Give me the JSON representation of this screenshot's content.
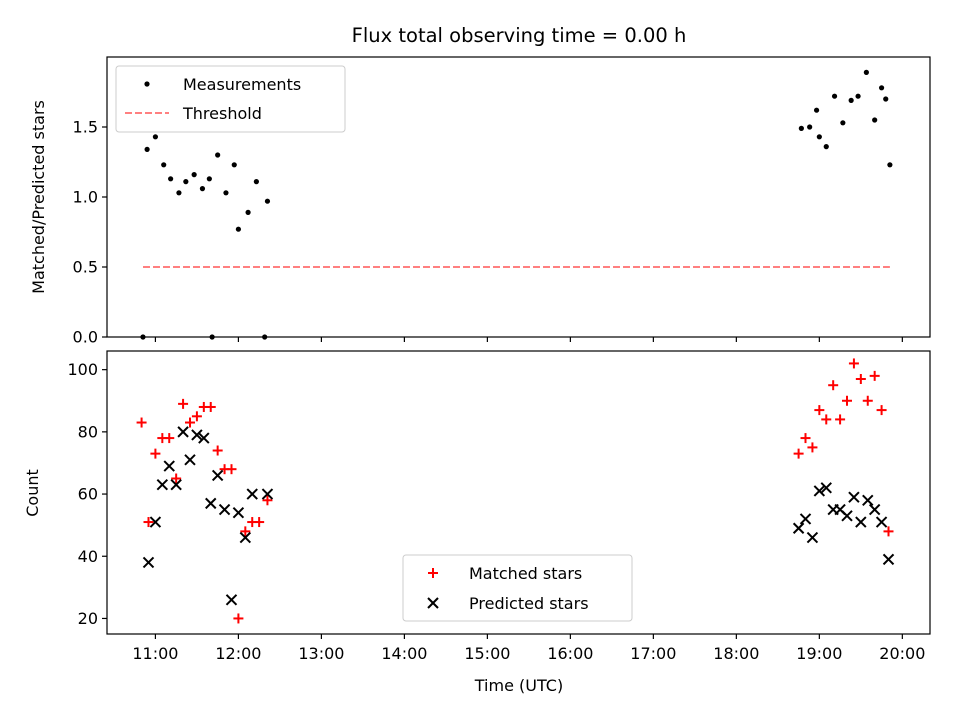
{
  "figure": {
    "title": "Flux total observing time = 0.00 h",
    "xlabel": "Time (UTC)"
  },
  "chart_data": [
    {
      "type": "scatter",
      "panel": "top",
      "ylabel": "Matched/Predicted stars",
      "xlim": [
        "10:25",
        "20:20"
      ],
      "ylim": [
        0,
        2.0
      ],
      "yticks": [
        0.0,
        0.5,
        1.0,
        1.5
      ],
      "ytick_labels": [
        "0.0",
        "0.5",
        "1.0",
        "1.5"
      ],
      "legend_position": "upper-left",
      "series": [
        {
          "name": "Measurements",
          "marker": "dot",
          "color": "#000000",
          "x": [
            "10:51",
            "10:54",
            "11:00",
            "11:06",
            "11:11",
            "11:17",
            "11:22",
            "11:28",
            "11:34",
            "11:39",
            "11:41",
            "11:45",
            "11:51",
            "11:57",
            "12:00",
            "12:07",
            "12:13",
            "12:19",
            "12:21",
            "18:47",
            "18:53",
            "18:58",
            "19:00",
            "19:05",
            "19:11",
            "19:17",
            "19:23",
            "19:28",
            "19:34",
            "19:40",
            "19:45",
            "19:48",
            "19:51"
          ],
          "y": [
            0.0,
            1.34,
            1.43,
            1.23,
            1.13,
            1.03,
            1.11,
            1.16,
            1.06,
            1.13,
            0.0,
            1.3,
            1.03,
            1.23,
            0.77,
            0.89,
            1.11,
            0.0,
            0.97,
            1.49,
            1.5,
            1.62,
            1.43,
            1.36,
            1.72,
            1.53,
            1.69,
            1.72,
            1.89,
            1.55,
            1.78,
            1.7,
            1.23
          ]
        },
        {
          "name": "Threshold",
          "style": "dashed",
          "color": "#ff8080",
          "x": [
            "10:51",
            "19:51"
          ],
          "y": [
            0.5,
            0.5
          ]
        }
      ]
    },
    {
      "type": "scatter",
      "panel": "bottom",
      "ylabel": "Count",
      "xlim": [
        "10:25",
        "20:20"
      ],
      "ylim": [
        15,
        106
      ],
      "yticks": [
        20,
        40,
        60,
        80,
        100
      ],
      "ytick_labels": [
        "20",
        "40",
        "60",
        "80",
        "100"
      ],
      "xticks": [
        "11:00",
        "12:00",
        "13:00",
        "14:00",
        "15:00",
        "16:00",
        "17:00",
        "18:00",
        "19:00",
        "20:00"
      ],
      "xtick_labels": [
        "11:00",
        "12:00",
        "13:00",
        "14:00",
        "15:00",
        "16:00",
        "17:00",
        "18:00",
        "19:00",
        "20:00"
      ],
      "legend_position": "lower-center",
      "series": [
        {
          "name": "Matched stars",
          "marker": "plus",
          "color": "#ff0000",
          "x": [
            "10:50",
            "10:55",
            "11:00",
            "11:05",
            "11:10",
            "11:15",
            "11:20",
            "11:25",
            "11:30",
            "11:35",
            "11:40",
            "11:45",
            "11:50",
            "11:55",
            "12:00",
            "12:05",
            "12:10",
            "12:15",
            "12:21",
            "18:45",
            "18:50",
            "18:55",
            "19:00",
            "19:05",
            "19:10",
            "19:15",
            "19:20",
            "19:25",
            "19:30",
            "19:35",
            "19:40",
            "19:45",
            "19:50"
          ],
          "y": [
            83,
            51,
            73,
            78,
            78,
            65,
            89,
            83,
            85,
            88,
            88,
            74,
            68,
            68,
            20,
            48,
            51,
            51,
            58,
            73,
            78,
            75,
            87,
            84,
            95,
            84,
            90,
            102,
            97,
            90,
            98,
            87,
            48
          ]
        },
        {
          "name": "Predicted stars",
          "marker": "x",
          "color": "#000000",
          "x": [
            "10:55",
            "11:00",
            "11:05",
            "11:10",
            "11:15",
            "11:20",
            "11:25",
            "11:30",
            "11:35",
            "11:40",
            "11:45",
            "11:50",
            "11:55",
            "12:00",
            "12:05",
            "12:10",
            "12:21",
            "18:45",
            "18:50",
            "18:55",
            "19:00",
            "19:05",
            "19:10",
            "19:15",
            "19:20",
            "19:25",
            "19:30",
            "19:35",
            "19:40",
            "19:45",
            "19:50"
          ],
          "y": [
            38,
            51,
            63,
            69,
            63,
            80,
            71,
            79,
            78,
            57,
            66,
            55,
            26,
            54,
            46,
            60,
            60,
            49,
            52,
            46,
            61,
            62,
            55,
            55,
            53,
            59,
            51,
            58,
            55,
            51,
            39
          ]
        }
      ]
    }
  ]
}
